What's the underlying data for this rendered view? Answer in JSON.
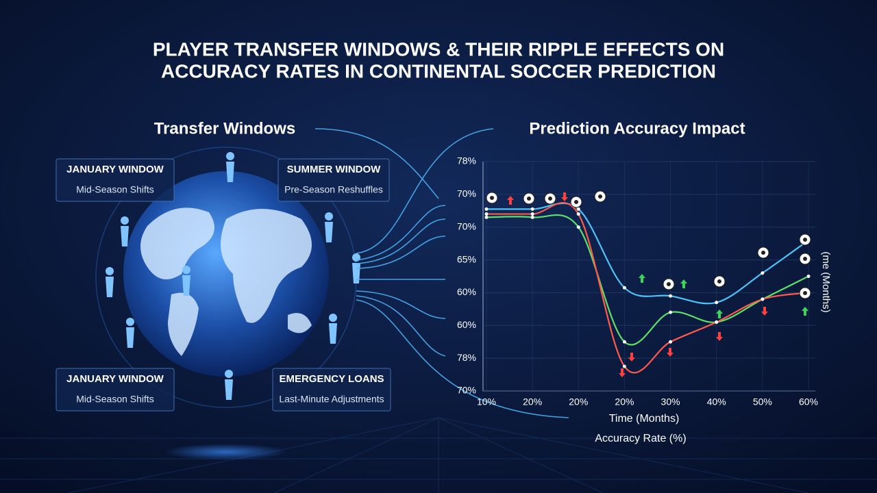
{
  "header": {
    "title_lines": [
      "PLAYER TRANSFER WINDOWS & THEIR RIPPLE EFFECTS ON",
      "ACCURACY RATES IN CONTINENTAL SOCCER PREDICTION"
    ]
  },
  "left_heading": "Transfer Windows",
  "boxes": [
    {
      "title": "JANUARY WINDOW",
      "subtitle": "Mid-Season Shifts"
    },
    {
      "title": "SUMMER WINDOW",
      "subtitle": "Pre-Season Reshuffles"
    },
    {
      "title": "JANUARY WINDOW",
      "subtitle": "Mid-Season Shifts"
    },
    {
      "title": "EMERGENCY LOANS",
      "subtitle": "Last-Minute Adjustments"
    }
  ],
  "chart_data": {
    "type": "line",
    "title": "Prediction Accuracy Impact",
    "categories": [
      "10%",
      "20%",
      "20%",
      "20%",
      "30%",
      "40%",
      "50%",
      "60%"
    ],
    "y_categories": [
      "70%",
      "78%",
      "60%",
      "60%",
      "65%",
      "70%",
      "70%",
      "78%"
    ],
    "xlabel": "Time (Months)",
    "caption": "Accuracy Rate (%)",
    "ylabel": "(me (Months)",
    "grid": true,
    "series": [
      {
        "color": "#4fc3f7",
        "values": [
          5.55,
          5.55,
          5.55,
          3.15,
          2.9,
          2.7,
          3.6,
          4.6
        ]
      },
      {
        "color": "#5ee06a",
        "values": [
          5.3,
          5.3,
          5.0,
          1.5,
          2.4,
          2.1,
          2.8,
          3.5
        ]
      },
      {
        "color": "#ff5a4a",
        "values": [
          5.4,
          5.4,
          5.4,
          0.75,
          1.5,
          2.1,
          2.8,
          3.0
        ]
      }
    ]
  }
}
